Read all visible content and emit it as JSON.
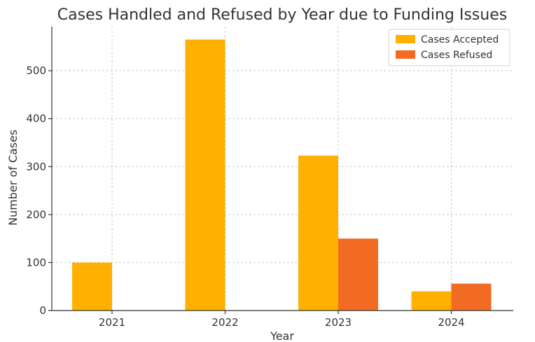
{
  "chart_data": {
    "type": "bar",
    "title": "Cases Handled and Refused by Year due to Funding Issues",
    "xlabel": "Year",
    "ylabel": "Number of Cases",
    "categories": [
      "2021",
      "2022",
      "2023",
      "2024"
    ],
    "series": [
      {
        "name": "Cases Accepted",
        "color": "#ffb000",
        "values": [
          100,
          565,
          323,
          40
        ]
      },
      {
        "name": "Cases Refused",
        "color": "#f26b22",
        "values": [
          0,
          0,
          150,
          56
        ]
      }
    ],
    "yticks": [
      0,
      100,
      200,
      300,
      400,
      500
    ],
    "ylim": [
      0,
      592
    ],
    "grid": true,
    "legend_position": "top-right"
  }
}
